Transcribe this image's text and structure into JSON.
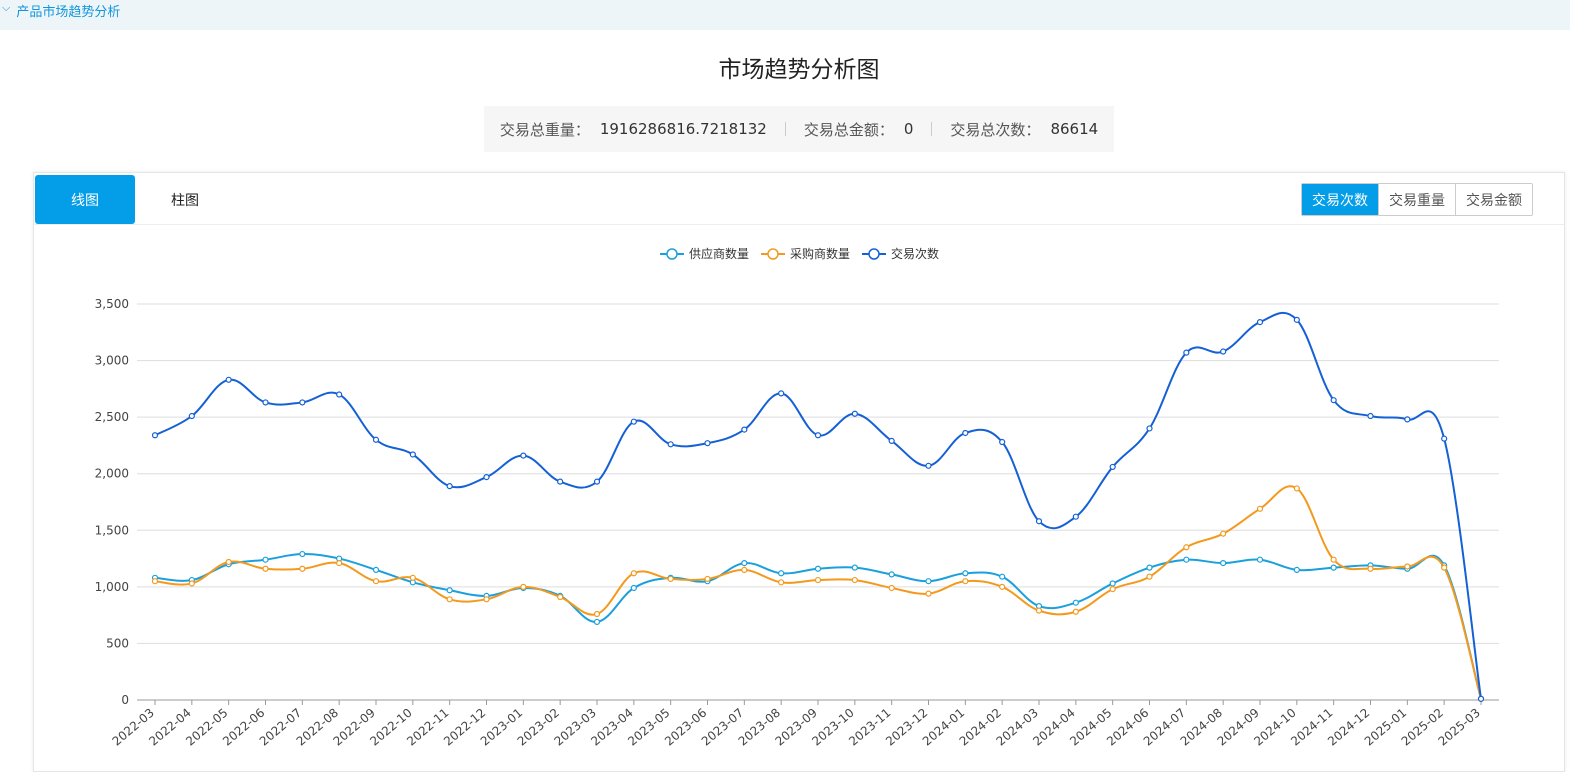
{
  "breadcrumb": {
    "label": "产品市场趋势分析"
  },
  "page_title": "市场趋势分析图",
  "stats": {
    "weight_label": "交易总重量：",
    "weight_value": "1916286816.7218132",
    "amount_label": "交易总金额：",
    "amount_value": "0",
    "count_label": "交易总次数：",
    "count_value": "86614"
  },
  "view_tabs": [
    {
      "label": "线图",
      "active": true
    },
    {
      "label": "柱图",
      "active": false
    }
  ],
  "metric_buttons": [
    {
      "label": "交易次数",
      "active": true
    },
    {
      "label": "交易重量",
      "active": false
    },
    {
      "label": "交易金额",
      "active": false
    }
  ],
  "colors": {
    "accent": "#049ee8",
    "supplier": "#1aa0dc",
    "buyer": "#f39a1e",
    "trades": "#1460d6",
    "grid": "#dddddd"
  },
  "chart_data": {
    "type": "line",
    "smooth": true,
    "legend_position": "top-center",
    "grid": true,
    "ylim": [
      0,
      3500
    ],
    "yticks": [
      "0",
      "500",
      "1,000",
      "1,500",
      "2,000",
      "2,500",
      "3,000",
      "3,500"
    ],
    "ytick_values": [
      0,
      500,
      1000,
      1500,
      2000,
      2500,
      3000,
      3500
    ],
    "categories": [
      "2022-03",
      "2022-04",
      "2022-05",
      "2022-06",
      "2022-07",
      "2022-08",
      "2022-09",
      "2022-10",
      "2022-11",
      "2022-12",
      "2023-01",
      "2023-02",
      "2023-03",
      "2023-04",
      "2023-05",
      "2023-06",
      "2023-07",
      "2023-08",
      "2023-09",
      "2023-10",
      "2023-11",
      "2023-12",
      "2024-01",
      "2024-02",
      "2024-03",
      "2024-04",
      "2024-05",
      "2024-06",
      "2024-07",
      "2024-08",
      "2024-09",
      "2024-10",
      "2024-11",
      "2024-12",
      "2025-01",
      "2025-02",
      "2025-03"
    ],
    "series": [
      {
        "name": "供应商数量",
        "color": "#1aa0dc",
        "values": [
          1080,
          1060,
          1200,
          1240,
          1290,
          1250,
          1150,
          1040,
          970,
          920,
          990,
          920,
          690,
          990,
          1080,
          1050,
          1210,
          1120,
          1160,
          1170,
          1110,
          1050,
          1120,
          1090,
          830,
          860,
          1030,
          1170,
          1240,
          1210,
          1240,
          1150,
          1170,
          1190,
          1160,
          1190,
          10
        ]
      },
      {
        "name": "采购商数量",
        "color": "#f39a1e",
        "values": [
          1050,
          1030,
          1220,
          1160,
          1160,
          1210,
          1050,
          1080,
          890,
          890,
          1000,
          910,
          760,
          1120,
          1070,
          1070,
          1150,
          1040,
          1060,
          1060,
          990,
          940,
          1050,
          1000,
          790,
          780,
          980,
          1090,
          1350,
          1470,
          1690,
          1870,
          1240,
          1160,
          1180,
          1170,
          10
        ]
      },
      {
        "name": "交易次数",
        "color": "#1460d6",
        "values": [
          2340,
          2510,
          2830,
          2630,
          2630,
          2700,
          2300,
          2170,
          1890,
          1970,
          2160,
          1930,
          1930,
          2460,
          2260,
          2270,
          2390,
          2710,
          2340,
          2530,
          2290,
          2070,
          2360,
          2280,
          1580,
          1620,
          2060,
          2400,
          3070,
          3080,
          3340,
          3360,
          2650,
          2510,
          2480,
          2310,
          10
        ]
      }
    ]
  }
}
